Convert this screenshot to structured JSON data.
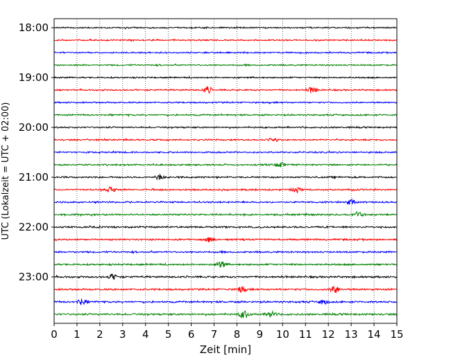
{
  "chart_data": {
    "type": "line",
    "title": "",
    "xlabel": "Zeit  [min]",
    "ylabel": "UTC (Lokalzeit = UTC + 02:00)",
    "xlim": [
      0,
      15
    ],
    "x_ticks": [
      "0",
      "1",
      "2",
      "3",
      "4",
      "5",
      "6",
      "7",
      "8",
      "9",
      "10",
      "11",
      "12",
      "13",
      "14",
      "15"
    ],
    "y_tick_labels": [
      "18:00",
      "19:00",
      "20:00",
      "21:00",
      "22:00",
      "23:00"
    ],
    "traces_per_hour": 4,
    "trace_start_times": [
      "18:00",
      "18:15",
      "18:30",
      "18:45",
      "19:00",
      "19:15",
      "19:30",
      "19:45",
      "20:00",
      "20:15",
      "20:30",
      "20:45",
      "21:00",
      "21:15",
      "21:30",
      "21:45",
      "22:00",
      "22:15",
      "22:30",
      "22:45",
      "23:00",
      "23:15",
      "23:30",
      "23:45"
    ],
    "trace_colors": [
      "#000000",
      "#ff0000",
      "#0000ff",
      "#008000"
    ],
    "grid": "vertical dotted",
    "legend": "none"
  }
}
